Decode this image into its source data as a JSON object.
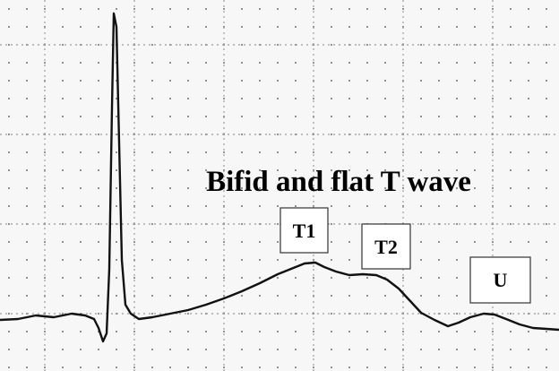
{
  "title": "Bifid and flat T wave",
  "labels": [
    "T1",
    "T2",
    "U"
  ]
}
